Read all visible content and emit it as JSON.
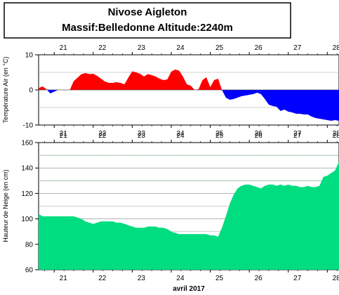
{
  "title": {
    "line1": "Nivose Aigleton",
    "line2": "Massif:Belledonne Altitude:2240m"
  },
  "colors": {
    "temperature_positive": "#ff0000",
    "temperature_negative": "#0000ff",
    "snow_fill": "#00dd80",
    "grid": "#888888",
    "guide_line": "#66aa66"
  },
  "chart_data": [
    {
      "type": "area",
      "title": "",
      "ylabel": "Température Air (en °C)",
      "xlabel": "",
      "x_ticks": [
        "21",
        "22",
        "23",
        "24",
        "25",
        "26",
        "27",
        "28"
      ],
      "x_range": [
        20.6,
        28.3
      ],
      "ylim": [
        -10,
        10
      ],
      "y_ticks": [
        "10",
        "0",
        "-10"
      ],
      "grid": true,
      "series": [
        {
          "x": [
            20.6,
            20.7,
            20.8,
            20.9,
            21.0,
            21.1,
            21.2,
            21.3,
            21.4,
            21.5,
            21.6,
            21.7,
            21.8,
            21.9,
            22.0,
            22.1,
            22.2,
            22.3,
            22.4,
            22.5,
            22.6,
            22.7,
            22.8,
            22.9,
            23.0,
            23.1,
            23.2,
            23.3,
            23.4,
            23.5,
            23.6,
            23.7,
            23.8,
            23.9,
            24.0,
            24.1,
            24.2,
            24.3,
            24.4,
            24.5,
            24.6,
            24.7,
            24.8,
            24.9,
            25.0,
            25.1,
            25.2,
            25.3,
            25.4,
            25.5,
            25.6,
            25.7,
            25.8,
            25.9,
            26.0,
            26.1,
            26.2,
            26.3,
            26.4,
            26.5,
            26.6,
            26.7,
            26.8,
            26.9,
            27.0,
            27.1,
            27.2,
            27.3,
            27.4,
            27.5,
            27.6,
            27.7,
            27.8,
            27.9,
            28.0,
            28.1,
            28.2,
            28.3
          ],
          "values": [
            0.5,
            1.0,
            0.2,
            -1.0,
            -0.5,
            0.0,
            0.0,
            0.0,
            0.0,
            2.5,
            3.5,
            4.5,
            4.8,
            4.5,
            4.6,
            4.0,
            3.2,
            2.4,
            2.0,
            2.0,
            2.2,
            2.0,
            1.6,
            3.5,
            5.3,
            5.0,
            4.6,
            3.8,
            4.5,
            4.2,
            3.8,
            3.2,
            2.8,
            3.0,
            5.2,
            5.8,
            5.5,
            3.8,
            1.6,
            1.2,
            0.0,
            0.2,
            2.8,
            3.6,
            0.8,
            2.8,
            3.2,
            0.0,
            -2.2,
            -2.8,
            -2.6,
            -2.2,
            -1.8,
            -1.6,
            -1.4,
            -1.2,
            -0.8,
            -1.2,
            -2.6,
            -4.2,
            -4.6,
            -4.8,
            -6.0,
            -5.6,
            -6.2,
            -6.4,
            -6.8,
            -6.8,
            -7.0,
            -7.0,
            -7.6,
            -8.0,
            -8.2,
            -8.4,
            -8.6,
            -8.8,
            -8.6,
            -8.8
          ]
        }
      ]
    },
    {
      "type": "area",
      "title": "",
      "ylabel": "Hauteur de Neige (en cm)",
      "xlabel": "avril 2017",
      "x_ticks": [
        "21",
        "22",
        "23",
        "24",
        "25",
        "26",
        "27",
        "28"
      ],
      "x_range": [
        20.6,
        28.3
      ],
      "ylim": [
        60,
        160
      ],
      "y_ticks": [
        "160",
        "140",
        "120",
        "100",
        "80",
        "60"
      ],
      "guide_lines": [
        150,
        130
      ],
      "grid": true,
      "series": [
        {
          "x": [
            20.6,
            20.7,
            20.8,
            20.9,
            21.0,
            21.1,
            21.2,
            21.3,
            21.4,
            21.5,
            21.6,
            21.7,
            21.8,
            21.9,
            22.0,
            22.1,
            22.2,
            22.3,
            22.4,
            22.5,
            22.6,
            22.7,
            22.8,
            22.9,
            23.0,
            23.1,
            23.2,
            23.3,
            23.4,
            23.5,
            23.6,
            23.7,
            23.8,
            23.9,
            24.0,
            24.1,
            24.2,
            24.3,
            24.4,
            24.5,
            24.6,
            24.7,
            24.8,
            24.9,
            25.0,
            25.1,
            25.2,
            25.3,
            25.4,
            25.5,
            25.6,
            25.7,
            25.8,
            25.9,
            26.0,
            26.1,
            26.2,
            26.3,
            26.4,
            26.5,
            26.6,
            26.7,
            26.8,
            26.9,
            27.0,
            27.1,
            27.2,
            27.3,
            27.4,
            27.5,
            27.6,
            27.7,
            27.8,
            27.9,
            28.0,
            28.1,
            28.2,
            28.3
          ],
          "values": [
            104,
            102,
            102,
            102,
            102,
            102,
            102,
            102,
            102,
            102,
            101,
            100,
            98,
            97,
            96,
            97,
            98,
            98,
            98,
            98,
            97,
            97,
            96,
            95,
            94,
            93,
            93,
            93,
            94,
            94,
            94,
            93,
            93,
            92,
            90,
            89,
            88,
            88,
            88,
            88,
            88,
            88,
            88,
            88,
            87,
            87,
            86,
            93,
            102,
            112,
            119,
            124,
            126,
            127,
            127,
            126,
            125,
            124,
            126,
            127,
            127,
            126,
            127,
            126,
            127,
            126,
            126,
            125,
            125,
            126,
            125,
            125,
            126,
            133,
            134,
            136,
            138,
            145
          ]
        }
      ]
    }
  ]
}
